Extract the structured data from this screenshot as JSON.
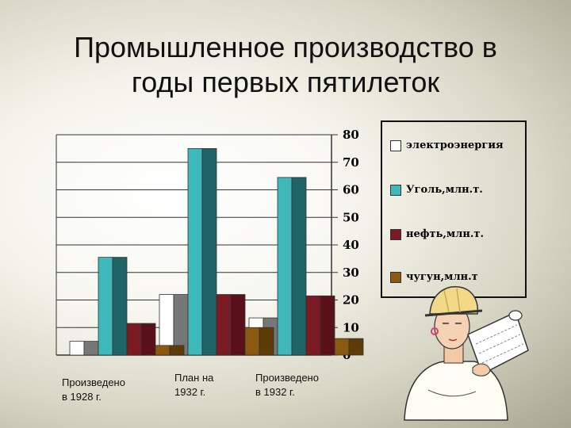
{
  "page": {
    "title_line1": "Промышленное производство в",
    "title_line2": "годы первых пятилеток"
  },
  "chart_data": {
    "type": "bar",
    "categories": [
      "Произведено\nв 1928 г.",
      "План на\n1932 г.",
      "Произведено\nв 1932 г."
    ],
    "series": [
      {
        "name": "электроэнергия",
        "color": "#ffffff",
        "values": [
          5,
          22,
          13.5
        ]
      },
      {
        "name": "Уголь,млн.т.",
        "color": "#3fb8bb",
        "values": [
          35.5,
          75,
          64.5
        ]
      },
      {
        "name": "нефть,млн.т.",
        "color": "#7a1a22",
        "values": [
          11.5,
          22,
          21.5
        ]
      },
      {
        "name": "чугун,млн.т",
        "color": "#8a5a10",
        "values": [
          3.5,
          10,
          6
        ]
      }
    ],
    "ylim": [
      0,
      80
    ],
    "yticks": [
      "0",
      "10",
      "20",
      "30",
      "40",
      "50",
      "60",
      "70",
      "80"
    ],
    "grid": true,
    "legend_position": "right",
    "title": "",
    "xlabel": "",
    "ylabel": ""
  }
}
